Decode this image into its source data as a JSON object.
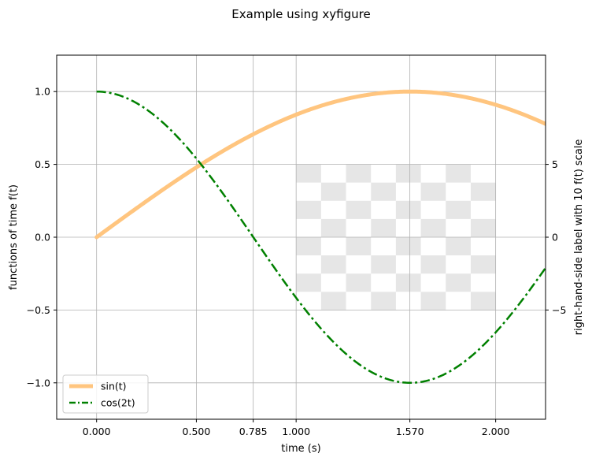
{
  "chart_data": {
    "type": "line",
    "title": "Example using xyfigure",
    "xlabel": "time (s)",
    "ylabel": "functions of time f(t)",
    "ylabel_right": "right-hand-side label with 10 f(t) scale",
    "xlim": [
      -0.2,
      2.25
    ],
    "ylim": [
      -1.25,
      1.25
    ],
    "x_ticks": [
      0.0,
      0.5,
      0.785,
      1.0,
      1.57,
      2.0
    ],
    "x_tick_labels": [
      "0.000",
      "0.500",
      "0.785",
      "1.000",
      "1.570",
      "2.000"
    ],
    "y_ticks": [
      -1.0,
      -0.5,
      0.0,
      0.5,
      1.0
    ],
    "y_tick_labels": [
      "−1.0",
      "−0.5",
      "0.0",
      "0.5",
      "1.0"
    ],
    "y_right_ticks": [
      -5,
      0,
      5
    ],
    "y_right_tick_labels": [
      "−5",
      "0",
      "5"
    ],
    "y_right_scale": 10,
    "grid": true,
    "legend_position": "lower-left",
    "inset_image": {
      "description_kind": "checkerboard",
      "x_range": [
        1.0,
        2.0
      ],
      "y_range": [
        -0.5,
        0.5
      ],
      "cols": 8,
      "rows": 8,
      "color_light": "#ffffff",
      "color_dark": "#e6e6e6"
    },
    "series": [
      {
        "name": "sin(t)",
        "function": "sin",
        "color": "#ffc57f",
        "linestyle": "solid",
        "x": [
          0.0,
          0.1,
          0.2,
          0.3,
          0.4,
          0.5,
          0.6,
          0.7,
          0.8,
          0.9,
          1.0,
          1.1,
          1.2,
          1.3,
          1.4,
          1.5,
          1.6,
          1.7,
          1.8,
          1.9,
          2.0,
          2.1,
          2.2,
          2.25
        ],
        "y": [
          0.0,
          0.0998,
          0.1987,
          0.2955,
          0.3894,
          0.4794,
          0.5646,
          0.6442,
          0.7174,
          0.7833,
          0.8415,
          0.8912,
          0.932,
          0.9636,
          0.9854,
          0.9975,
          0.9996,
          0.9917,
          0.9738,
          0.9463,
          0.9093,
          0.8632,
          0.8085,
          0.7781
        ]
      },
      {
        "name": "cos(2t)",
        "function": "cos2",
        "color": "#008000",
        "linestyle": "dashdot",
        "x": [
          0.0,
          0.1,
          0.2,
          0.3,
          0.4,
          0.5,
          0.6,
          0.7,
          0.8,
          0.9,
          1.0,
          1.1,
          1.2,
          1.3,
          1.4,
          1.5,
          1.6,
          1.7,
          1.8,
          1.9,
          2.0,
          2.1,
          2.2,
          2.25
        ],
        "y": [
          1.0,
          0.9801,
          0.9211,
          0.8253,
          0.6967,
          0.5403,
          0.3624,
          0.17,
          -0.0292,
          -0.2272,
          -0.4161,
          -0.5885,
          -0.7374,
          -0.8569,
          -0.9422,
          -0.99,
          -0.9983,
          -0.9668,
          -0.8968,
          -0.791,
          -0.6536,
          -0.4903,
          -0.3073,
          -0.2108
        ]
      }
    ]
  }
}
